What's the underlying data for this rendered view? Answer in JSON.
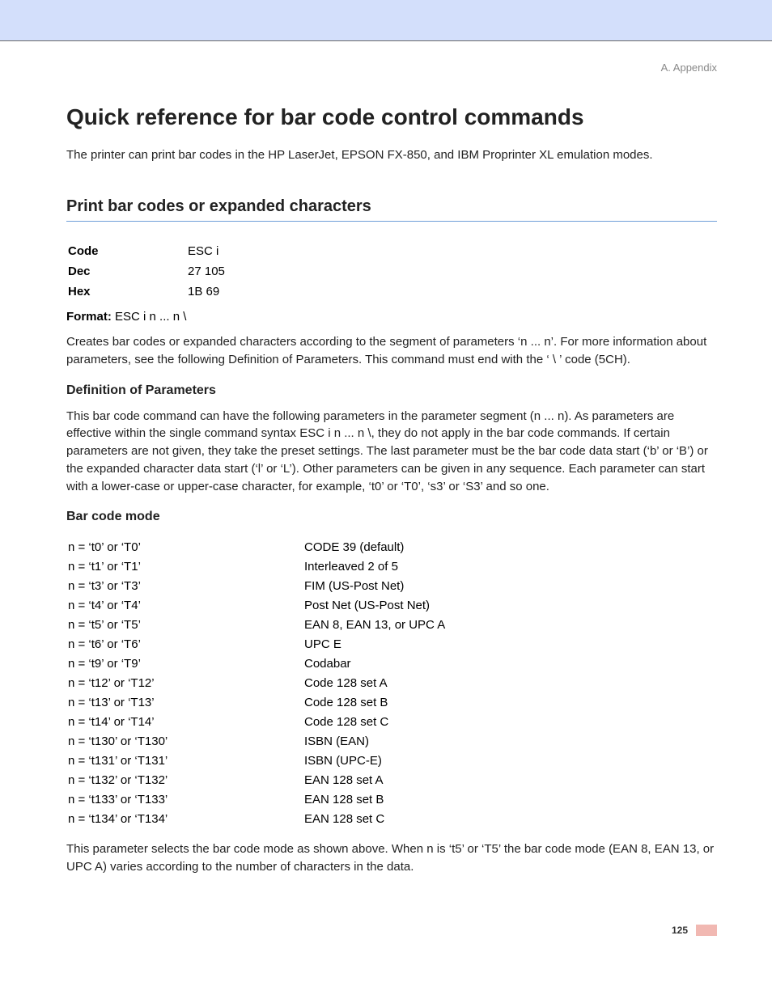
{
  "colors": {
    "top_band": "#d3dffb",
    "hr": "#6b6b6b",
    "h2_underline": "#6f9fd8",
    "footer_bar": "#f1b8b2",
    "text": "#222222",
    "context_text": "#888888"
  },
  "context_label": "A. Appendix",
  "h1": "Quick reference for bar code control commands",
  "intro": "The printer can print bar codes in the HP LaserJet, EPSON FX-850, and IBM Proprinter XL emulation modes.",
  "h2": "Print bar codes or expanded characters",
  "code_table": {
    "rows": [
      {
        "label": "Code",
        "value": "ESC i"
      },
      {
        "label": "Dec",
        "value": "27 105"
      },
      {
        "label": "Hex",
        "value": "1B 69"
      }
    ]
  },
  "format": {
    "label": "Format:",
    "value": " ESC i n ... n \\"
  },
  "creates_p": "Creates bar codes or expanded characters according to the segment of parameters ‘n ... n’. For more information about parameters, see the following Definition of Parameters. This command must end with the ‘ \\ ’ code (5CH).",
  "h3_def": "Definition of Parameters",
  "def_p": "This bar code command can have the following parameters in the parameter segment (n ... n). As parameters are effective within the single command syntax ESC i n ... n \\, they do not apply in the bar code commands. If certain parameters are not given, they take the preset settings. The last parameter must be the bar code data start (‘b’ or ‘B’) or the expanded character data start (‘l’ or ‘L’). Other parameters can be given in any sequence. Each parameter can start with a lower-case or upper-case character, for example, ‘t0’ or ‘T0’, ‘s3’ or ‘S3’ and so one.",
  "h3_mode": "Bar code mode",
  "mode_table": {
    "rows": [
      {
        "param": "n = ‘t0’ or ‘T0’",
        "desc": "CODE 39 (default)"
      },
      {
        "param": "n = ‘t1’ or ‘T1’",
        "desc": "Interleaved 2 of 5"
      },
      {
        "param": "n = ‘t3’ or ‘T3’",
        "desc": "FIM (US-Post Net)"
      },
      {
        "param": "n = ‘t4’ or ‘T4’",
        "desc": "Post Net (US-Post Net)"
      },
      {
        "param": "n = ‘t5’ or ‘T5’",
        "desc": "EAN 8, EAN 13, or UPC A"
      },
      {
        "param": "n = ‘t6’ or ‘T6’",
        "desc": "UPC E"
      },
      {
        "param": "n = ‘t9’ or ‘T9’",
        "desc": "Codabar"
      },
      {
        "param": "n = ‘t12’ or ‘T12’",
        "desc": "Code 128 set A"
      },
      {
        "param": "n = ‘t13’ or ‘T13’",
        "desc": "Code 128 set B"
      },
      {
        "param": "n = ‘t14’ or ‘T14’",
        "desc": "Code 128 set C"
      },
      {
        "param": "n = ‘t130’ or ‘T130’",
        "desc": "ISBN (EAN)"
      },
      {
        "param": "n = ‘t131’ or ‘T131’",
        "desc": "ISBN (UPC-E)"
      },
      {
        "param": "n = ‘t132’ or ‘T132’",
        "desc": "EAN 128 set A"
      },
      {
        "param": "n = ‘t133’ or ‘T133’",
        "desc": "EAN 128 set B"
      },
      {
        "param": "n = ‘t134’ or ‘T134’",
        "desc": "EAN 128 set C"
      }
    ]
  },
  "closing_p": "This parameter selects the bar code mode as shown above. When n is ‘t5’ or ‘T5’ the bar code mode (EAN 8, EAN 13, or UPC A) varies according to the number of characters in the data.",
  "page_number": "125"
}
